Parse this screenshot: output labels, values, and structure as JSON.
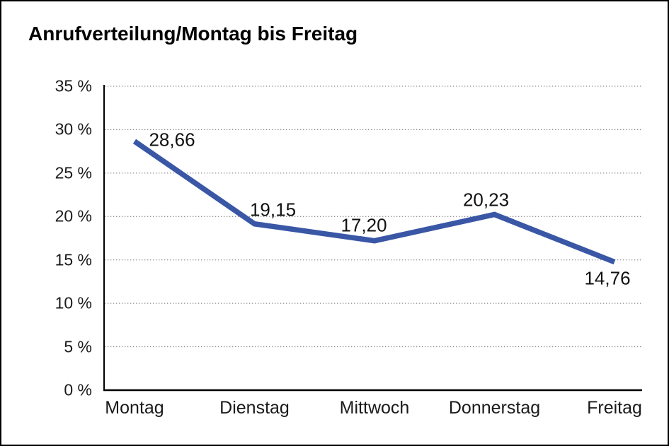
{
  "title": "Anrufverteilung/Montag bis Freitag",
  "chart_data": {
    "type": "line",
    "title": "Anrufverteilung/Montag bis Freitag",
    "categories": [
      "Montag",
      "Dienstag",
      "Mittwoch",
      "Donnerstag",
      "Freitag"
    ],
    "values": [
      28.66,
      19.15,
      17.2,
      20.23,
      14.76
    ],
    "value_labels": [
      "28,66",
      "19,15",
      "17,20",
      "20,23",
      "14,76"
    ],
    "xlabel": "",
    "ylabel": "",
    "ylim": [
      0,
      35
    ],
    "ytick_step": 5,
    "ytick_labels": [
      "0 %",
      "5 %",
      "10 %",
      "15 %",
      "20 %",
      "25 %",
      "30 %",
      "35 %"
    ],
    "grid": "horizontal-dotted",
    "legend": "none",
    "colors": {
      "line": "#3A57A6",
      "text": "#1a1a1a",
      "grid": "#6e6e6e",
      "axis": "#000000",
      "background": "#ffffff"
    }
  }
}
